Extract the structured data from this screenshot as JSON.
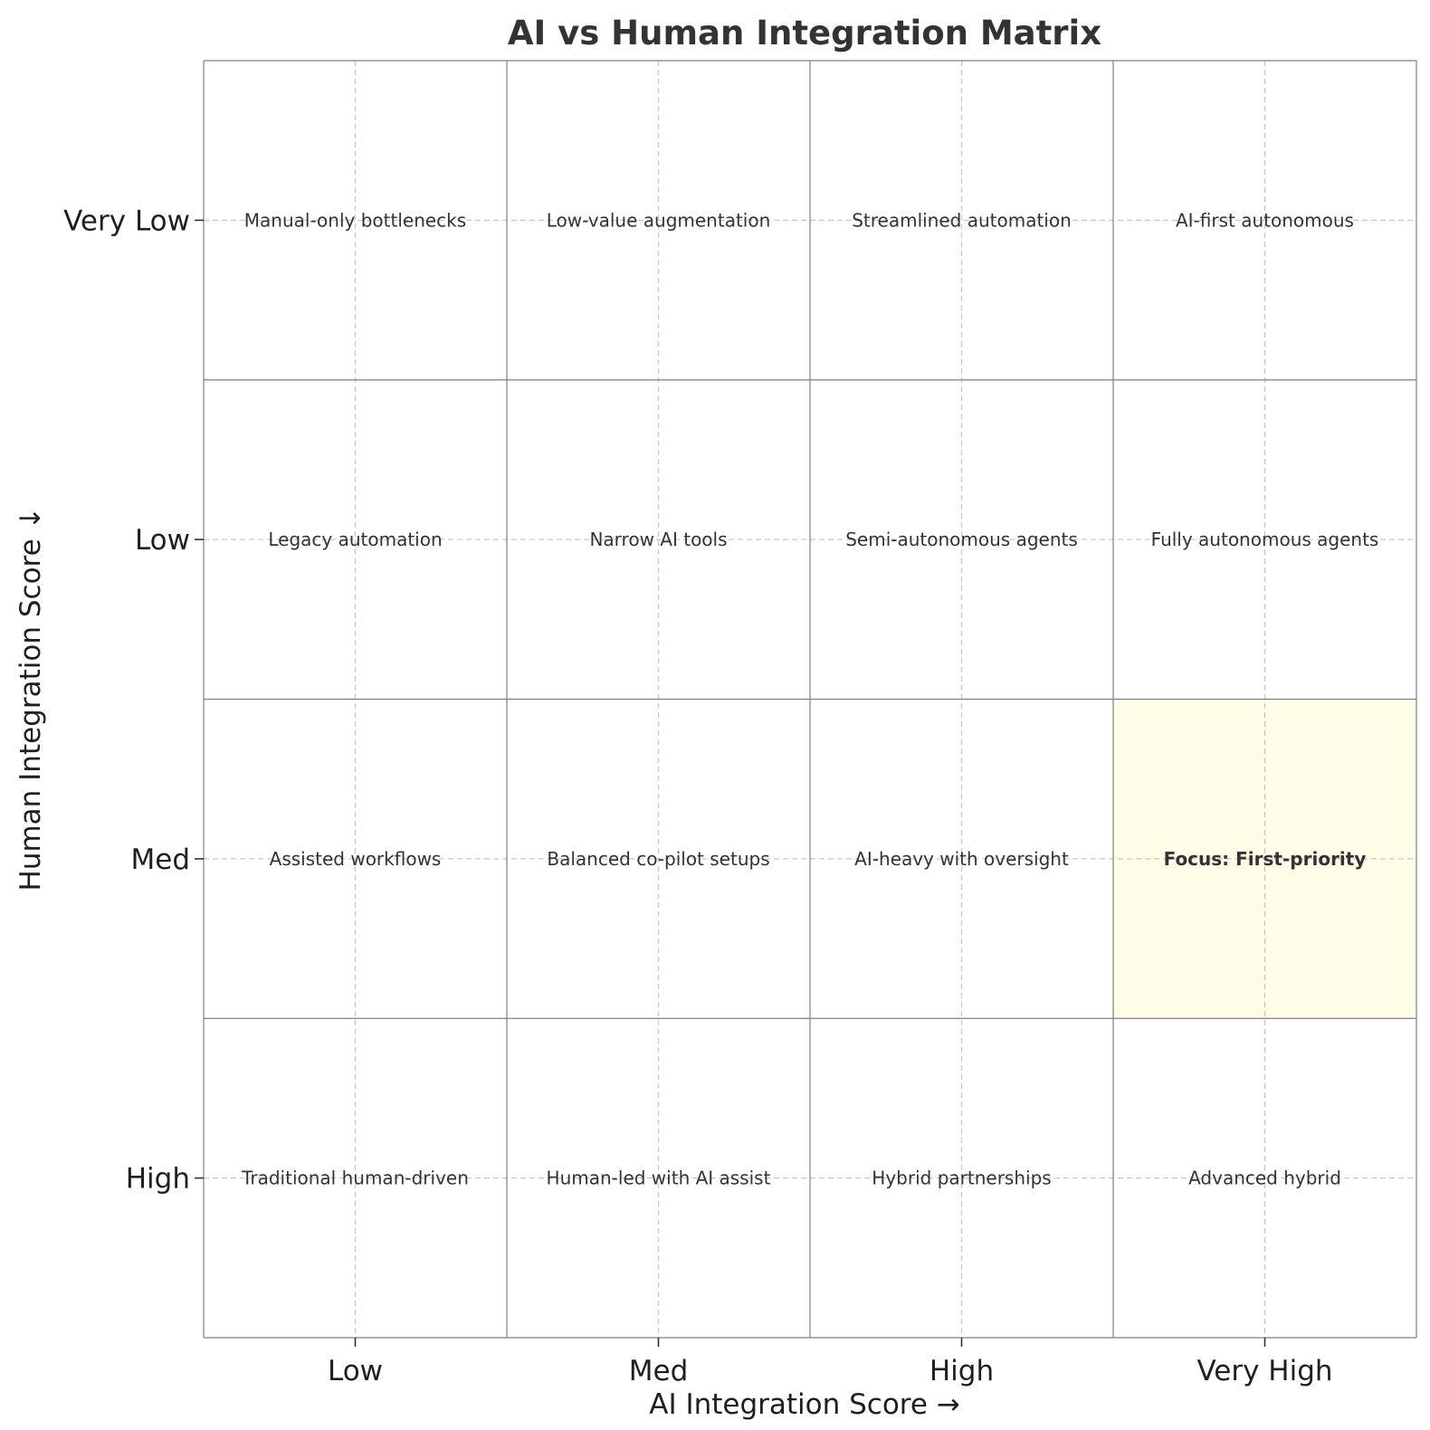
{
  "chart_data": {
    "type": "heatmap",
    "title": "AI vs Human Integration Matrix",
    "xlabel": "AI Integration Score →",
    "ylabel": "Human Integration Score ↓",
    "x_categories": [
      "Low",
      "Med",
      "High",
      "Very High"
    ],
    "y_categories": [
      "Very Low",
      "Low",
      "Med",
      "High"
    ],
    "grid": true,
    "cells": [
      [
        "Manual-only bottlenecks",
        "Low-value augmentation",
        "Streamlined automation",
        "AI-first autonomous"
      ],
      [
        "Legacy automation",
        "Narrow AI tools",
        "Semi-autonomous agents",
        "Fully autonomous agents"
      ],
      [
        "Assisted workflows",
        "Balanced co-pilot setups",
        "AI-heavy with oversight",
        "Focus: First-priority"
      ],
      [
        "Traditional human-driven",
        "Human-led with AI assist",
        "Hybrid partnerships",
        "Advanced hybrid"
      ]
    ],
    "highlight": {
      "row": 2,
      "col": 3,
      "color": "#fefde8",
      "bold": true
    }
  },
  "colors": {
    "cell_border": "#808080",
    "grid": "#c8c8c8",
    "text": "#333333"
  }
}
